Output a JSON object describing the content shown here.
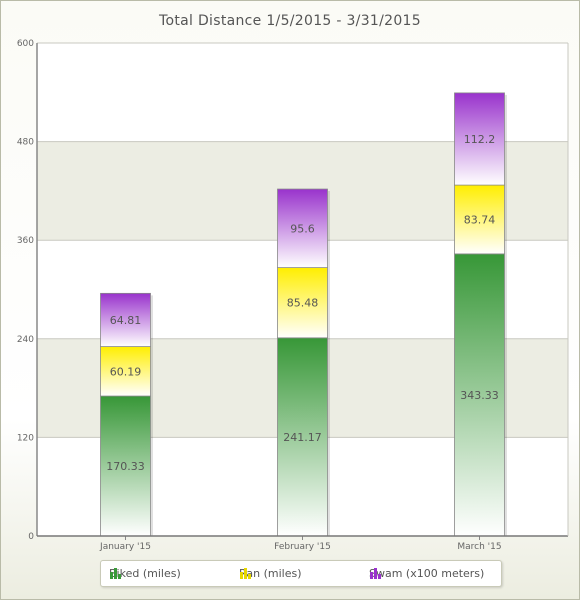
{
  "chart_data": {
    "type": "bar",
    "stacked": true,
    "title": "Total Distance 1/5/2015 - 3/31/2015",
    "categories": [
      "January '15",
      "February '15",
      "March '15"
    ],
    "series": [
      {
        "name": "Biked (miles)",
        "values": [
          170.33,
          241.17,
          343.33
        ],
        "color": "#3a9a3a"
      },
      {
        "name": "Ran (miles)",
        "values": [
          60.19,
          85.48,
          83.74
        ],
        "color": "#ffee00"
      },
      {
        "name": "Swam (x100 meters)",
        "values": [
          64.81,
          95.6,
          112.2
        ],
        "color": "#9933cc"
      }
    ],
    "ylim": [
      0,
      600
    ],
    "yticks": [
      "0",
      "120",
      "240",
      "360",
      "480",
      "600"
    ],
    "grid": true,
    "legend_position": "bottom"
  }
}
